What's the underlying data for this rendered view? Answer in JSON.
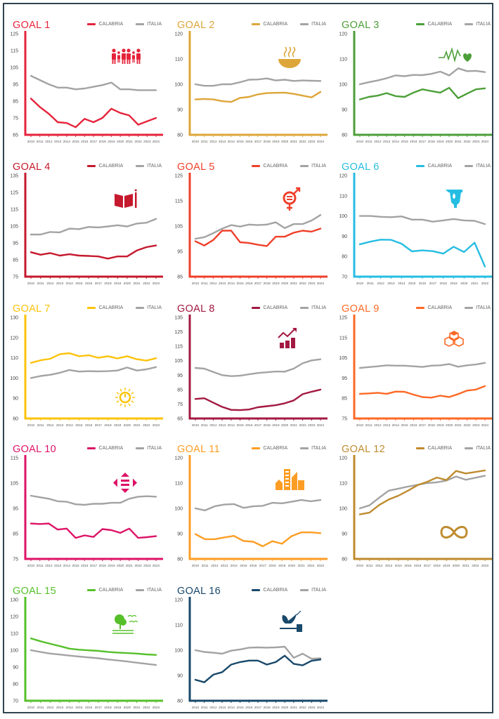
{
  "legend": {
    "calabria": "CALABRIA",
    "italia": "ITALIA"
  },
  "italia_color": "#a3a3a3",
  "chart_data": [
    {
      "type": "line",
      "title": "GOAL 1",
      "color": "#e5243b",
      "icon": "family-icon",
      "ylim": [
        65,
        125
      ],
      "yticks": [
        65,
        75,
        85,
        95,
        105,
        115,
        125
      ],
      "x": [
        "2010",
        "2011",
        "2012",
        "2013",
        "2014",
        "2015",
        "2016",
        "2017",
        "2018",
        "2019",
        "2020",
        "2021",
        "2022",
        "2023",
        "2024"
      ],
      "series": [
        {
          "name": "CALABRIA",
          "values": [
            86.5,
            81.5,
            77.5,
            72.5,
            72,
            69.5,
            74.5,
            72.5,
            75,
            80.5,
            78,
            76.5,
            71,
            73,
            75
          ]
        },
        {
          "name": "ITALIA",
          "values": [
            100,
            97.5,
            95,
            93,
            93,
            92,
            92.5,
            93.5,
            94.5,
            96,
            92,
            92,
            91.5,
            91.5,
            91.5
          ]
        }
      ]
    },
    {
      "type": "line",
      "title": "GOAL 2",
      "color": "#dda63a",
      "icon": "bowl-icon",
      "ylim": [
        80,
        120
      ],
      "yticks": [
        80,
        90,
        100,
        110,
        120
      ],
      "x": [
        "2010",
        "2011",
        "2012",
        "2013",
        "2014",
        "2015",
        "2016",
        "2017",
        "2018",
        "2019",
        "2020",
        "2021",
        "2022",
        "2023",
        "2024"
      ],
      "series": [
        {
          "name": "CALABRIA",
          "values": [
            94,
            94.2,
            94,
            93.3,
            93,
            94.6,
            95,
            96,
            96.5,
            96.6,
            96.7,
            96.2,
            95.5,
            94.8,
            97
          ]
        },
        {
          "name": "ITALIA",
          "values": [
            100,
            99.4,
            99.4,
            100,
            100,
            100.8,
            101.8,
            101.9,
            102.3,
            101.5,
            101.8,
            101.3,
            101.5,
            101.4,
            101.3
          ]
        }
      ]
    },
    {
      "type": "line",
      "title": "GOAL 3",
      "color": "#4c9f38",
      "icon": "heartbeat-icon",
      "ylim": [
        80,
        120
      ],
      "yticks": [
        80,
        90,
        100,
        110,
        120
      ],
      "x": [
        "2010",
        "2011",
        "2012",
        "2013",
        "2014",
        "2015",
        "2016",
        "2017",
        "2018",
        "2019",
        "2020",
        "2021",
        "2022",
        "2023",
        "2024"
      ],
      "series": [
        {
          "name": "CALABRIA",
          "values": [
            94,
            95,
            95.5,
            96.5,
            95.3,
            95,
            96.7,
            98,
            97.3,
            96.7,
            98.6,
            94.5,
            96.3,
            98,
            98.4
          ]
        },
        {
          "name": "ITALIA",
          "values": [
            100,
            100.8,
            101.5,
            102.4,
            103.5,
            103.2,
            103.7,
            103.6,
            104.1,
            105,
            103.5,
            106.3,
            105.2,
            105.3,
            104.8
          ]
        }
      ]
    },
    {
      "type": "line",
      "title": "GOAL 4",
      "color": "#c5192d",
      "icon": "book-icon",
      "ylim": [
        75,
        135
      ],
      "yticks": [
        75,
        85,
        95,
        105,
        115,
        125,
        135
      ],
      "x": [
        "2010",
        "2011",
        "2012",
        "2013",
        "2014",
        "2015",
        "2016",
        "2017",
        "2018",
        "2019",
        "2020",
        "2021",
        "2022",
        "2023"
      ],
      "series": [
        {
          "name": "CALABRIA",
          "values": [
            89.5,
            88,
            89,
            87.5,
            88.3,
            87.5,
            87.3,
            87,
            85.7,
            87,
            87,
            90.5,
            92.5,
            93.5
          ]
        },
        {
          "name": "ITALIA",
          "values": [
            100,
            100,
            101.5,
            101.3,
            103.5,
            103.2,
            104.5,
            104.2,
            104.8,
            105.5,
            104.8,
            106.5,
            107,
            109.3
          ]
        }
      ]
    },
    {
      "type": "line",
      "title": "GOAL 5",
      "color": "#ef402b",
      "icon": "gender-equality-icon",
      "ylim": [
        85,
        125
      ],
      "yticks": [
        85,
        95,
        105,
        115,
        125
      ],
      "x": [
        "2010",
        "2011",
        "2012",
        "2013",
        "2014",
        "2015",
        "2016",
        "2017",
        "2018",
        "2019",
        "2020",
        "2021",
        "2022",
        "2023",
        "2024"
      ],
      "series": [
        {
          "name": "CALABRIA",
          "values": [
            99,
            97.3,
            99.5,
            103.2,
            103.2,
            98.6,
            98.3,
            97.6,
            97.1,
            100.8,
            100.8,
            102.4,
            103.2,
            102.8,
            104
          ]
        },
        {
          "name": "ITALIA",
          "values": [
            100,
            100.6,
            102.2,
            104,
            105.4,
            104.8,
            105.6,
            105.4,
            105.6,
            106.5,
            104.2,
            105.8,
            105.8,
            107.2,
            109.4
          ]
        }
      ]
    },
    {
      "type": "line",
      "title": "GOAL 6",
      "color": "#26bde2",
      "icon": "water-icon",
      "ylim": [
        70,
        120
      ],
      "yticks": [
        70,
        80,
        90,
        100,
        110,
        120
      ],
      "x": [
        "2010",
        "2011",
        "2012",
        "2013",
        "2014",
        "2015",
        "2016",
        "2017",
        "2018",
        "2019",
        "2020",
        "2021",
        "2022"
      ],
      "series": [
        {
          "name": "CALABRIA",
          "values": [
            86,
            87.3,
            88.3,
            88.2,
            86.3,
            82.5,
            83,
            82.6,
            81.4,
            84.8,
            82.2,
            86.8,
            75
          ]
        },
        {
          "name": "ITALIA",
          "values": [
            100,
            100,
            99.6,
            99.4,
            99.8,
            98.2,
            98.2,
            97.2,
            97.8,
            98.5,
            97.8,
            97.6,
            96
          ]
        }
      ]
    },
    {
      "type": "line",
      "title": "GOAL 7",
      "color": "#fcc30b",
      "icon": "sun-power-icon",
      "ylim": [
        80,
        130
      ],
      "yticks": [
        80,
        90,
        100,
        110,
        120,
        130
      ],
      "x": [
        "2010",
        "2011",
        "2012",
        "2013",
        "2014",
        "2015",
        "2016",
        "2017",
        "2018",
        "2019",
        "2020",
        "2021",
        "2022",
        "2023"
      ],
      "series": [
        {
          "name": "CALABRIA",
          "values": [
            107.5,
            108.8,
            109.5,
            111.8,
            112.3,
            110.8,
            111.3,
            110,
            110.8,
            109.7,
            110.8,
            109.3,
            108.6,
            109.8
          ]
        },
        {
          "name": "ITALIA",
          "values": [
            100,
            101,
            101.6,
            102.6,
            104,
            103.2,
            103.4,
            103.3,
            103.4,
            103.7,
            105.2,
            103.7,
            104.3,
            105.4
          ]
        }
      ]
    },
    {
      "type": "line",
      "title": "GOAL 8",
      "color": "#a21942",
      "icon": "growth-chart-icon",
      "ylim": [
        65,
        135
      ],
      "yticks": [
        65,
        75,
        85,
        95,
        105,
        115,
        125,
        135
      ],
      "x": [
        "2010",
        "2011",
        "2012",
        "2013",
        "2014",
        "2015",
        "2016",
        "2017",
        "2018",
        "2019",
        "2020",
        "2021",
        "2022",
        "2023",
        "2024"
      ],
      "series": [
        {
          "name": "CALABRIA",
          "values": [
            78.5,
            79,
            76,
            73,
            71,
            70.8,
            71.2,
            72.8,
            73.5,
            74.2,
            75.5,
            77.5,
            81.8,
            83.5,
            85
          ]
        },
        {
          "name": "ITALIA",
          "values": [
            100,
            99.5,
            97.2,
            95,
            94.3,
            94.6,
            95.6,
            96.5,
            97,
            97.5,
            97.4,
            99.5,
            103.2,
            105.2,
            106
          ]
        }
      ]
    },
    {
      "type": "line",
      "title": "GOAL 9",
      "color": "#fd6925",
      "icon": "cubes-icon",
      "ylim": [
        75,
        125
      ],
      "yticks": [
        75,
        85,
        95,
        105,
        115,
        125
      ],
      "x": [
        "2010",
        "2011",
        "2012",
        "2013",
        "2014",
        "2015",
        "2016",
        "2017",
        "2018",
        "2019",
        "2020",
        "2021",
        "2022",
        "2023",
        "2024"
      ],
      "series": [
        {
          "name": "CALABRIA",
          "values": [
            87.2,
            87.4,
            87.7,
            87.2,
            88.3,
            88.2,
            86.8,
            85.6,
            85.3,
            86.3,
            85.6,
            87.1,
            88.8,
            89.3,
            91
          ]
        },
        {
          "name": "ITALIA",
          "values": [
            100,
            100.4,
            100.8,
            101.3,
            101.1,
            101.1,
            100.8,
            100.5,
            101.1,
            101.3,
            101.9,
            100.6,
            101.3,
            101.7,
            102.5
          ]
        }
      ]
    },
    {
      "type": "line",
      "title": "GOAL 10",
      "color": "#dd1367",
      "icon": "reduced-inequalities-icon",
      "ylim": [
        75,
        115
      ],
      "yticks": [
        75,
        85,
        95,
        105,
        115
      ],
      "x": [
        "2010",
        "2011",
        "2012",
        "2013",
        "2014",
        "2015",
        "2016",
        "2017",
        "2018",
        "2019",
        "2020",
        "2021",
        "2022",
        "2023",
        "2024"
      ],
      "series": [
        {
          "name": "CALABRIA",
          "values": [
            89,
            88.8,
            89,
            86.6,
            87,
            83.3,
            84.3,
            83.7,
            86.8,
            86.4,
            85.3,
            87,
            83.3,
            83.6,
            84
          ]
        },
        {
          "name": "ITALIA",
          "values": [
            100,
            99.4,
            98.8,
            97.8,
            97.6,
            96.6,
            96.4,
            96.8,
            96.8,
            97.2,
            97.2,
            98.8,
            99.6,
            99.8,
            99.6
          ]
        }
      ]
    },
    {
      "type": "line",
      "title": "GOAL 11",
      "color": "#fd9d24",
      "icon": "city-buildings-icon",
      "ylim": [
        80,
        120
      ],
      "yticks": [
        80,
        90,
        100,
        110,
        120
      ],
      "x": [
        "2010",
        "2011",
        "2012",
        "2013",
        "2014",
        "2015",
        "2016",
        "2017",
        "2018",
        "2019",
        "2020",
        "2021",
        "2022",
        "2023"
      ],
      "series": [
        {
          "name": "CALABRIA",
          "values": [
            89.8,
            87.8,
            87.8,
            88.5,
            89.1,
            87.1,
            86.8,
            85,
            87,
            86,
            89,
            90.5,
            90.5,
            90.2
          ]
        },
        {
          "name": "ITALIA",
          "values": [
            100,
            99.2,
            100.8,
            101.5,
            101.7,
            100.2,
            100.8,
            101,
            102.2,
            102,
            102.6,
            103.3,
            102.8,
            103.3
          ]
        }
      ]
    },
    {
      "type": "line",
      "title": "GOAL 12",
      "color": "#bf8b2e",
      "icon": "infinity-loop-icon",
      "ylim": [
        80,
        120
      ],
      "yticks": [
        80,
        90,
        100,
        110,
        120
      ],
      "x": [
        "2010",
        "2011",
        "2012",
        "2013",
        "2014",
        "2015",
        "2016",
        "2017",
        "2018",
        "2019",
        "2020",
        "2021",
        "2022",
        "2023"
      ],
      "series": [
        {
          "name": "CALABRIA",
          "values": [
            97.6,
            98.3,
            101.3,
            103.5,
            105,
            107,
            109.2,
            110.5,
            112.2,
            111.2,
            114.8,
            113.8,
            114.4,
            115
          ]
        },
        {
          "name": "ITALIA",
          "values": [
            100,
            101.2,
            104.2,
            107,
            107.8,
            108.6,
            109.3,
            110,
            110.3,
            111,
            112.6,
            111.3,
            112.1,
            112.9
          ]
        }
      ]
    },
    {
      "type": "line",
      "title": "GOAL 15",
      "color": "#56c02b",
      "icon": "tree-birds-icon",
      "ylim": [
        70,
        130
      ],
      "yticks": [
        70,
        80,
        90,
        100,
        110,
        120,
        130
      ],
      "x": [
        "2010",
        "2011",
        "2012",
        "2013",
        "2014",
        "2015",
        "2016",
        "2017",
        "2018",
        "2019",
        "2020",
        "2021",
        "2022",
        "2023"
      ],
      "series": [
        {
          "name": "CALABRIA",
          "values": [
            107,
            105.3,
            103.8,
            102.4,
            100.9,
            100.3,
            99.9,
            99.6,
            99,
            98.6,
            98.3,
            98,
            97.5,
            97.2
          ]
        },
        {
          "name": "ITALIA",
          "values": [
            100,
            98.9,
            98,
            97.4,
            96.8,
            96.2,
            95.7,
            95.2,
            94.5,
            93.9,
            93.3,
            92.6,
            91.9,
            91.2
          ]
        }
      ]
    },
    {
      "type": "line",
      "title": "GOAL 16",
      "color": "#19486a",
      "icon": "dove-gavel-icon",
      "ylim": [
        80,
        120
      ],
      "yticks": [
        80,
        90,
        100,
        110,
        120
      ],
      "x": [
        "2010",
        "2011",
        "2012",
        "2013",
        "2014",
        "2015",
        "2016",
        "2017",
        "2018",
        "2019",
        "2020",
        "2021",
        "2022",
        "2023",
        "2024"
      ],
      "series": [
        {
          "name": "CALABRIA",
          "values": [
            88.3,
            87.3,
            90.3,
            91.3,
            94.3,
            95.3,
            95.9,
            95.9,
            94.3,
            95.3,
            97.8,
            94.6,
            94,
            95.8,
            96.3
          ]
        },
        {
          "name": "ITALIA",
          "values": [
            100,
            99.3,
            99,
            98.6,
            99.8,
            100.3,
            101,
            101.1,
            101,
            101.1,
            101.4,
            97,
            98.6,
            96.6,
            96.8
          ]
        }
      ]
    }
  ]
}
